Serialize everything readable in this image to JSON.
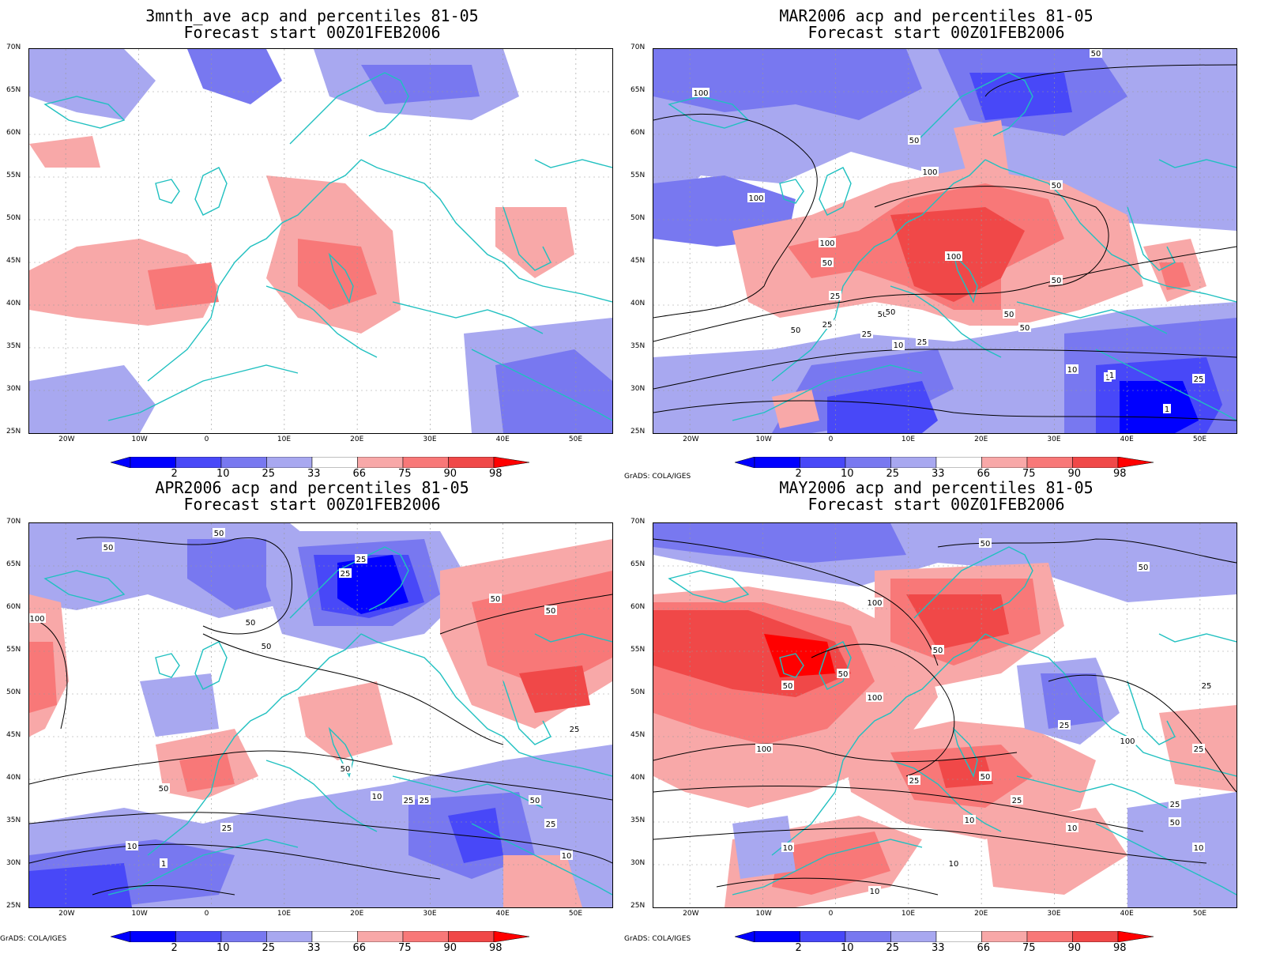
{
  "panels": [
    {
      "id": "p1",
      "title": "3mnth_ave acp and percentiles 81-05",
      "subtitle": "Forecast start 00Z01FEB2006",
      "credit": ""
    },
    {
      "id": "p2",
      "title": "MAR2006 acp and percentiles 81-05",
      "subtitle": "Forecast start 00Z01FEB2006",
      "credit": "GrADS: COLA/IGES"
    },
    {
      "id": "p3",
      "title": "APR2006 acp and percentiles 81-05",
      "subtitle": "Forecast start 00Z01FEB2006",
      "credit": "GrADS: COLA/IGES"
    },
    {
      "id": "p4",
      "title": "MAY2006 acp and percentiles 81-05",
      "subtitle": "Forecast start 00Z01FEB2006",
      "credit": "GrADS: COLA/IGES"
    }
  ],
  "lat_labels": [
    "70N",
    "65N",
    "60N",
    "55N",
    "50N",
    "45N",
    "40N",
    "35N",
    "30N",
    "25N"
  ],
  "lon_labels": [
    "20W",
    "10W",
    "0",
    "10E",
    "20E",
    "30E",
    "40E",
    "50E"
  ],
  "colorbar": {
    "labels": [
      "2",
      "10",
      "25",
      "33",
      "66",
      "75",
      "90",
      "98"
    ],
    "colors": [
      "#0000ff",
      "#4848f8",
      "#7878f0",
      "#a8a8f0",
      "#ffffff",
      "#f8a8a8",
      "#f87878",
      "#f04848",
      "#ff0000"
    ]
  },
  "map_colors": {
    "coast": "#20c0c0",
    "contour": "#000000",
    "blue_light": "#a8a8f0",
    "blue_mid": "#7878f0",
    "blue_dark": "#4848f8",
    "blue_deep": "#0000ff",
    "red_light": "#f8a8a8",
    "red_mid": "#f87878",
    "red_dark": "#f04848",
    "red_deep": "#ff0000"
  },
  "contour_labels": {
    "p1": [],
    "p2": [
      "50",
      "100",
      "50",
      "100",
      "50",
      "100",
      "100",
      "50",
      "100",
      "100",
      "50",
      "25",
      "25",
      "50",
      "50",
      "50",
      "25",
      "10",
      "50",
      "25",
      "10",
      "10",
      "1",
      "10",
      "1",
      "1",
      "25",
      "50"
    ],
    "p3": [
      "50",
      "50",
      "25",
      "25",
      "100",
      "50",
      "50",
      "50",
      "50",
      "50",
      "50",
      "50",
      "25",
      "10",
      "25",
      "25",
      "25",
      "50",
      "25",
      "10",
      "1",
      "10"
    ],
    "p4": [
      "50",
      "50",
      "100",
      "50",
      "50",
      "100",
      "50",
      "25",
      "100",
      "100",
      "25",
      "50",
      "25",
      "25",
      "10",
      "10",
      "25",
      "50",
      "25",
      "10",
      "10",
      "10",
      "10",
      "10"
    ]
  }
}
